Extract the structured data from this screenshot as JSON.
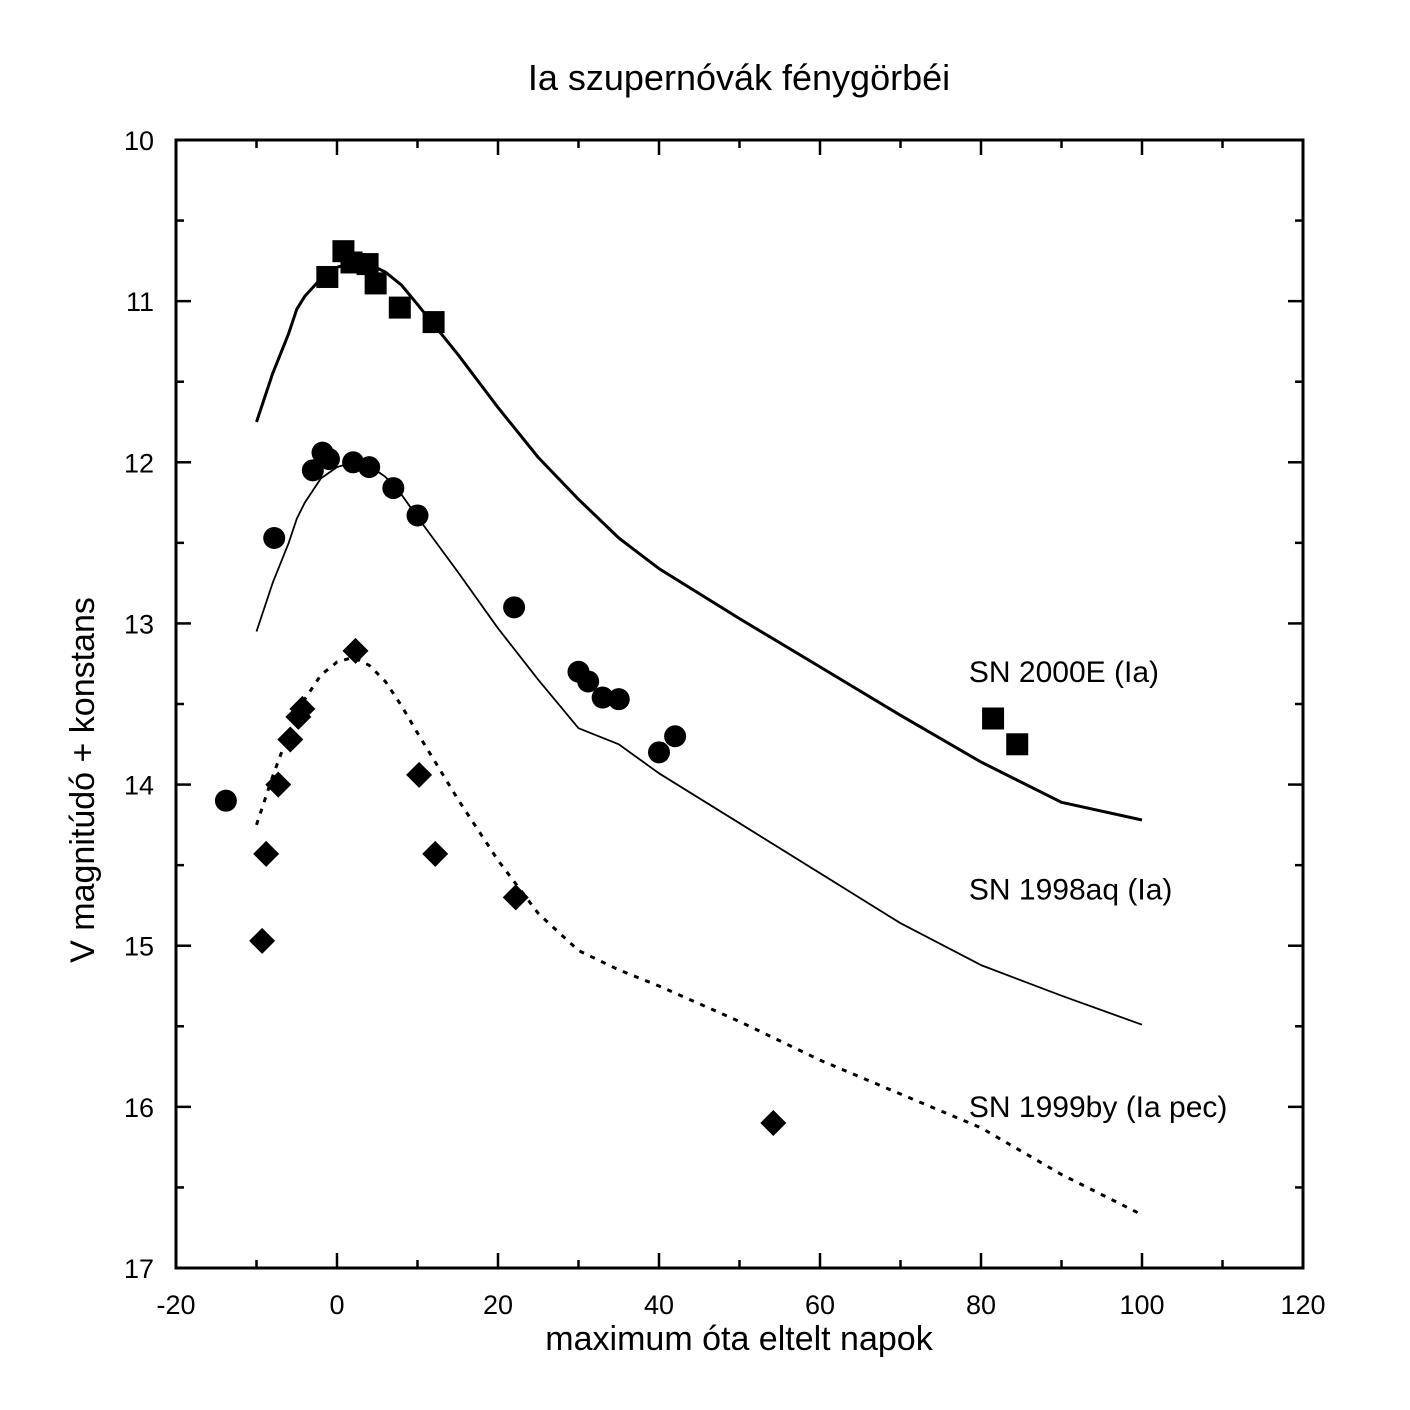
{
  "chart_data": {
    "type": "scatter",
    "title": "Ia szupernóvák fénygörbéi",
    "xlabel": "maximum óta eltelt napok",
    "ylabel": "V magnitúdó + konstans",
    "xlim": [
      -20,
      120
    ],
    "ylim": [
      10,
      17
    ],
    "y_inverted": true,
    "x_ticks": [
      -20,
      0,
      20,
      40,
      60,
      80,
      100,
      120
    ],
    "y_ticks": [
      10,
      11,
      12,
      13,
      14,
      15,
      16,
      17
    ],
    "x_minor_step": 10,
    "y_minor_step": 0.5,
    "grid": false,
    "series": [
      {
        "name": "SN 2000E (Ia)",
        "marker": "square",
        "points": [
          {
            "x": -1.2,
            "y": 10.85
          },
          {
            "x": 0.8,
            "y": 10.69
          },
          {
            "x": 1.8,
            "y": 10.76
          },
          {
            "x": 3.8,
            "y": 10.77
          },
          {
            "x": 4.8,
            "y": 10.89
          },
          {
            "x": 7.8,
            "y": 11.04
          },
          {
            "x": 12.0,
            "y": 11.13
          },
          {
            "x": 81.5,
            "y": 13.59
          },
          {
            "x": 84.5,
            "y": 13.75
          }
        ],
        "template": {
          "style": "solid",
          "width": 3,
          "points": [
            {
              "x": -10,
              "y": 11.75
            },
            {
              "x": -8,
              "y": 11.45
            },
            {
              "x": -6,
              "y": 11.2
            },
            {
              "x": -5,
              "y": 11.05
            },
            {
              "x": -4,
              "y": 10.97
            },
            {
              "x": -2,
              "y": 10.86
            },
            {
              "x": 0,
              "y": 10.79
            },
            {
              "x": 2,
              "y": 10.76
            },
            {
              "x": 4,
              "y": 10.77
            },
            {
              "x": 6,
              "y": 10.82
            },
            {
              "x": 8,
              "y": 10.9
            },
            {
              "x": 10,
              "y": 11.02
            },
            {
              "x": 15,
              "y": 11.33
            },
            {
              "x": 20,
              "y": 11.66
            },
            {
              "x": 25,
              "y": 11.97
            },
            {
              "x": 30,
              "y": 12.23
            },
            {
              "x": 35,
              "y": 12.47
            },
            {
              "x": 40,
              "y": 12.66
            },
            {
              "x": 50,
              "y": 12.97
            },
            {
              "x": 60,
              "y": 13.27
            },
            {
              "x": 70,
              "y": 13.57
            },
            {
              "x": 80,
              "y": 13.86
            },
            {
              "x": 90,
              "y": 14.11
            },
            {
              "x": 100,
              "y": 14.22
            }
          ]
        }
      },
      {
        "name": "SN 1998aq (Ia)",
        "marker": "circle",
        "points": [
          {
            "x": -13.8,
            "y": 14.1
          },
          {
            "x": -7.8,
            "y": 12.47
          },
          {
            "x": -3.0,
            "y": 12.05
          },
          {
            "x": -1.8,
            "y": 11.94
          },
          {
            "x": -1.0,
            "y": 11.98
          },
          {
            "x": 2.0,
            "y": 12.0
          },
          {
            "x": 4.0,
            "y": 12.03
          },
          {
            "x": 7.0,
            "y": 12.16
          },
          {
            "x": 10.0,
            "y": 12.33
          },
          {
            "x": 22.0,
            "y": 12.9
          },
          {
            "x": 30.0,
            "y": 13.3
          },
          {
            "x": 31.2,
            "y": 13.36
          },
          {
            "x": 33.0,
            "y": 13.46
          },
          {
            "x": 35.0,
            "y": 13.47
          },
          {
            "x": 40.0,
            "y": 13.8
          },
          {
            "x": 42.0,
            "y": 13.7
          }
        ],
        "template": {
          "style": "solid",
          "width": 1.8,
          "points": [
            {
              "x": -10,
              "y": 13.05
            },
            {
              "x": -8,
              "y": 12.75
            },
            {
              "x": -6,
              "y": 12.5
            },
            {
              "x": -5,
              "y": 12.35
            },
            {
              "x": -4,
              "y": 12.25
            },
            {
              "x": -2,
              "y": 12.1
            },
            {
              "x": 0,
              "y": 12.03
            },
            {
              "x": 2,
              "y": 12.0
            },
            {
              "x": 4,
              "y": 12.02
            },
            {
              "x": 6,
              "y": 12.09
            },
            {
              "x": 8,
              "y": 12.2
            },
            {
              "x": 10,
              "y": 12.34
            },
            {
              "x": 15,
              "y": 12.68
            },
            {
              "x": 20,
              "y": 13.03
            },
            {
              "x": 25,
              "y": 13.35
            },
            {
              "x": 30,
              "y": 13.65
            },
            {
              "x": 35,
              "y": 13.75
            },
            {
              "x": 40,
              "y": 13.93
            },
            {
              "x": 50,
              "y": 14.24
            },
            {
              "x": 60,
              "y": 14.55
            },
            {
              "x": 70,
              "y": 14.86
            },
            {
              "x": 80,
              "y": 15.12
            },
            {
              "x": 90,
              "y": 15.31
            },
            {
              "x": 100,
              "y": 15.49
            }
          ]
        }
      },
      {
        "name": "SN 1999by (Ia pec)",
        "marker": "diamond",
        "points": [
          {
            "x": -9.3,
            "y": 14.97
          },
          {
            "x": -8.8,
            "y": 14.43
          },
          {
            "x": -7.3,
            "y": 14.0
          },
          {
            "x": -5.8,
            "y": 13.72
          },
          {
            "x": -4.8,
            "y": 13.58
          },
          {
            "x": -4.3,
            "y": 13.53
          },
          {
            "x": 2.3,
            "y": 13.17
          },
          {
            "x": 10.2,
            "y": 13.94
          },
          {
            "x": 12.2,
            "y": 14.43
          },
          {
            "x": 22.2,
            "y": 14.7
          },
          {
            "x": 54.2,
            "y": 16.1
          }
        ],
        "template": {
          "style": "dotted",
          "width": 3,
          "points": [
            {
              "x": -10,
              "y": 14.25
            },
            {
              "x": -8,
              "y": 13.95
            },
            {
              "x": -6,
              "y": 13.68
            },
            {
              "x": -4,
              "y": 13.47
            },
            {
              "x": -2,
              "y": 13.32
            },
            {
              "x": 0,
              "y": 13.24
            },
            {
              "x": 2,
              "y": 13.21
            },
            {
              "x": 4,
              "y": 13.26
            },
            {
              "x": 6,
              "y": 13.36
            },
            {
              "x": 8,
              "y": 13.51
            },
            {
              "x": 10,
              "y": 13.68
            },
            {
              "x": 15,
              "y": 14.09
            },
            {
              "x": 20,
              "y": 14.47
            },
            {
              "x": 25,
              "y": 14.8
            },
            {
              "x": 30,
              "y": 15.03
            },
            {
              "x": 35,
              "y": 15.15
            },
            {
              "x": 40,
              "y": 15.25
            },
            {
              "x": 50,
              "y": 15.47
            },
            {
              "x": 60,
              "y": 15.71
            },
            {
              "x": 70,
              "y": 15.92
            },
            {
              "x": 80,
              "y": 16.13
            },
            {
              "x": 90,
              "y": 16.42
            },
            {
              "x": 100,
              "y": 16.67
            }
          ]
        }
      }
    ]
  }
}
